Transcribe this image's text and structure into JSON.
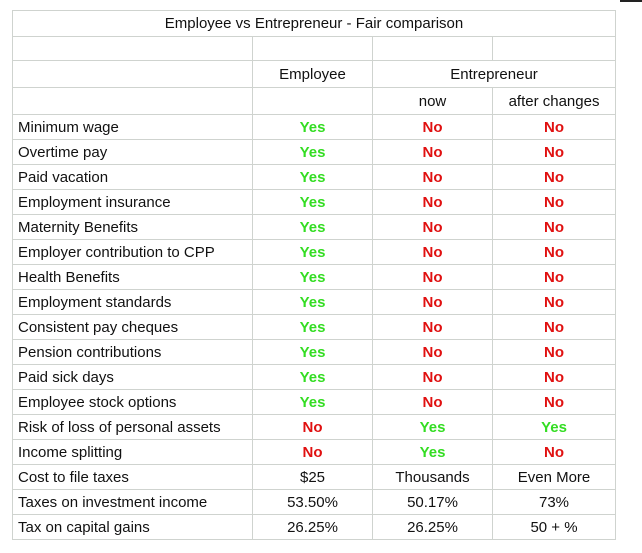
{
  "title": "Employee vs Entrepreneur - Fair comparison",
  "headers": {
    "employee": "Employee",
    "entrepreneur": "Entrepreneur",
    "now": "now",
    "after_changes": "after changes"
  },
  "colors": {
    "yes": "#33dd22",
    "no": "#e01010"
  },
  "rows": [
    {
      "label": "Minimum wage",
      "employee": "Yes",
      "now": "No",
      "after": "No"
    },
    {
      "label": "Overtime pay",
      "employee": "Yes",
      "now": "No",
      "after": "No"
    },
    {
      "label": "Paid vacation",
      "employee": "Yes",
      "now": "No",
      "after": "No"
    },
    {
      "label": "Employment insurance",
      "employee": "Yes",
      "now": "No",
      "after": "No"
    },
    {
      "label": "Maternity Benefits",
      "employee": "Yes",
      "now": "No",
      "after": "No"
    },
    {
      "label": "Employer contribution to CPP",
      "employee": "Yes",
      "now": "No",
      "after": "No"
    },
    {
      "label": "Health Benefits",
      "employee": "Yes",
      "now": "No",
      "after": "No"
    },
    {
      "label": "Employment standards",
      "employee": "Yes",
      "now": "No",
      "after": "No"
    },
    {
      "label": "Consistent pay cheques",
      "employee": "Yes",
      "now": "No",
      "after": "No"
    },
    {
      "label": "Pension contributions",
      "employee": "Yes",
      "now": "No",
      "after": "No"
    },
    {
      "label": "Paid sick days",
      "employee": "Yes",
      "now": "No",
      "after": "No"
    },
    {
      "label": "Employee stock options",
      "employee": "Yes",
      "now": "No",
      "after": "No"
    },
    {
      "label": "Risk of loss of personal assets",
      "employee": "No",
      "now": "Yes",
      "after": "Yes"
    },
    {
      "label": "Income splitting",
      "employee": "No",
      "now": "Yes",
      "after": "No"
    },
    {
      "label": "Cost to file taxes",
      "employee": "$25",
      "now": "Thousands",
      "after": "Even More"
    },
    {
      "label": "Taxes on investment income",
      "employee": "53.50%",
      "now": "50.17%",
      "after": "73%"
    },
    {
      "label": "Tax on capital gains",
      "employee": "26.25%",
      "now": "26.25%",
      "after": "50 + %"
    }
  ]
}
